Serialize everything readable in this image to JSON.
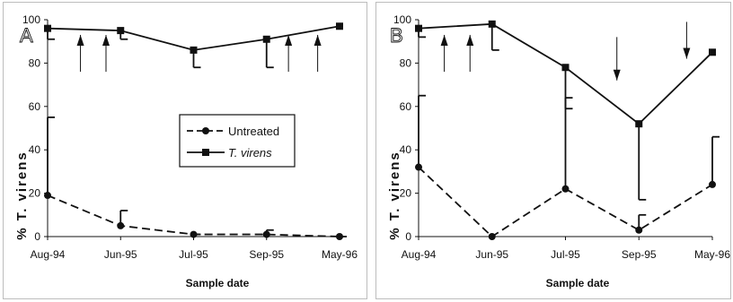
{
  "chart_data": [
    {
      "type": "line",
      "panel_label": "A",
      "categories": [
        "Aug-94",
        "Jun-95",
        "Jul-95",
        "Sep-95",
        "May-96"
      ],
      "xlabel": "Sample date",
      "ylabel": "% T. virens",
      "ylim": [
        0,
        100
      ],
      "yticks": [
        0,
        20,
        40,
        60,
        80,
        100
      ],
      "grid": false,
      "legend": {
        "placement": "center-right",
        "entries": [
          "Untreated",
          "T. virens"
        ]
      },
      "series": [
        {
          "name": "Untreated",
          "style": "dashed",
          "marker": "circle",
          "values": [
            19,
            5,
            1,
            1,
            0
          ],
          "err_upper": [
            55,
            12,
            1,
            3,
            0
          ],
          "err_lower": [
            null,
            null,
            null,
            null,
            null
          ]
        },
        {
          "name": "T. virens",
          "style": "solid",
          "marker": "square",
          "values": [
            96,
            95,
            86,
            91,
            97
          ],
          "err_upper": [
            null,
            null,
            null,
            null,
            null
          ],
          "err_lower": [
            91,
            91,
            78,
            78,
            null
          ]
        }
      ],
      "arrows": [
        {
          "x": 0.45,
          "y_tip": 93,
          "y_tail": 76,
          "direction": "up"
        },
        {
          "x": 0.8,
          "y_tip": 93,
          "y_tail": 76,
          "direction": "up"
        },
        {
          "x": 3.3,
          "y_tip": 93,
          "y_tail": 76,
          "direction": "up"
        },
        {
          "x": 3.7,
          "y_tip": 93,
          "y_tail": 76,
          "direction": "up"
        }
      ]
    },
    {
      "type": "line",
      "panel_label": "B",
      "categories": [
        "Aug-94",
        "Jun-95",
        "Jul-95",
        "Sep-95",
        "May-96"
      ],
      "xlabel": "Sample date",
      "ylabel": "% T. virens",
      "ylim": [
        0,
        100
      ],
      "yticks": [
        0,
        20,
        40,
        60,
        80,
        100
      ],
      "grid": false,
      "legend": null,
      "series": [
        {
          "name": "Untreated",
          "style": "dashed",
          "marker": "circle",
          "values": [
            32,
            0,
            22,
            3,
            24
          ],
          "err_upper": [
            65,
            null,
            64,
            10,
            46
          ],
          "err_lower": [
            null,
            null,
            null,
            null,
            null
          ]
        },
        {
          "name": "T. virens",
          "style": "solid",
          "marker": "square",
          "values": [
            96,
            98,
            78,
            52,
            85
          ],
          "err_upper": [
            null,
            null,
            null,
            null,
            null
          ],
          "err_lower": [
            92,
            86,
            59,
            17,
            null
          ]
        }
      ],
      "arrows": [
        {
          "x": 0.35,
          "y_tip": 93,
          "y_tail": 76,
          "direction": "up"
        },
        {
          "x": 0.7,
          "y_tip": 93,
          "y_tail": 76,
          "direction": "up"
        },
        {
          "x": 2.7,
          "y_tip": 72,
          "y_tail": 92,
          "direction": "down"
        },
        {
          "x": 3.65,
          "y_tip": 82,
          "y_tail": 99,
          "direction": "down"
        }
      ]
    }
  ]
}
